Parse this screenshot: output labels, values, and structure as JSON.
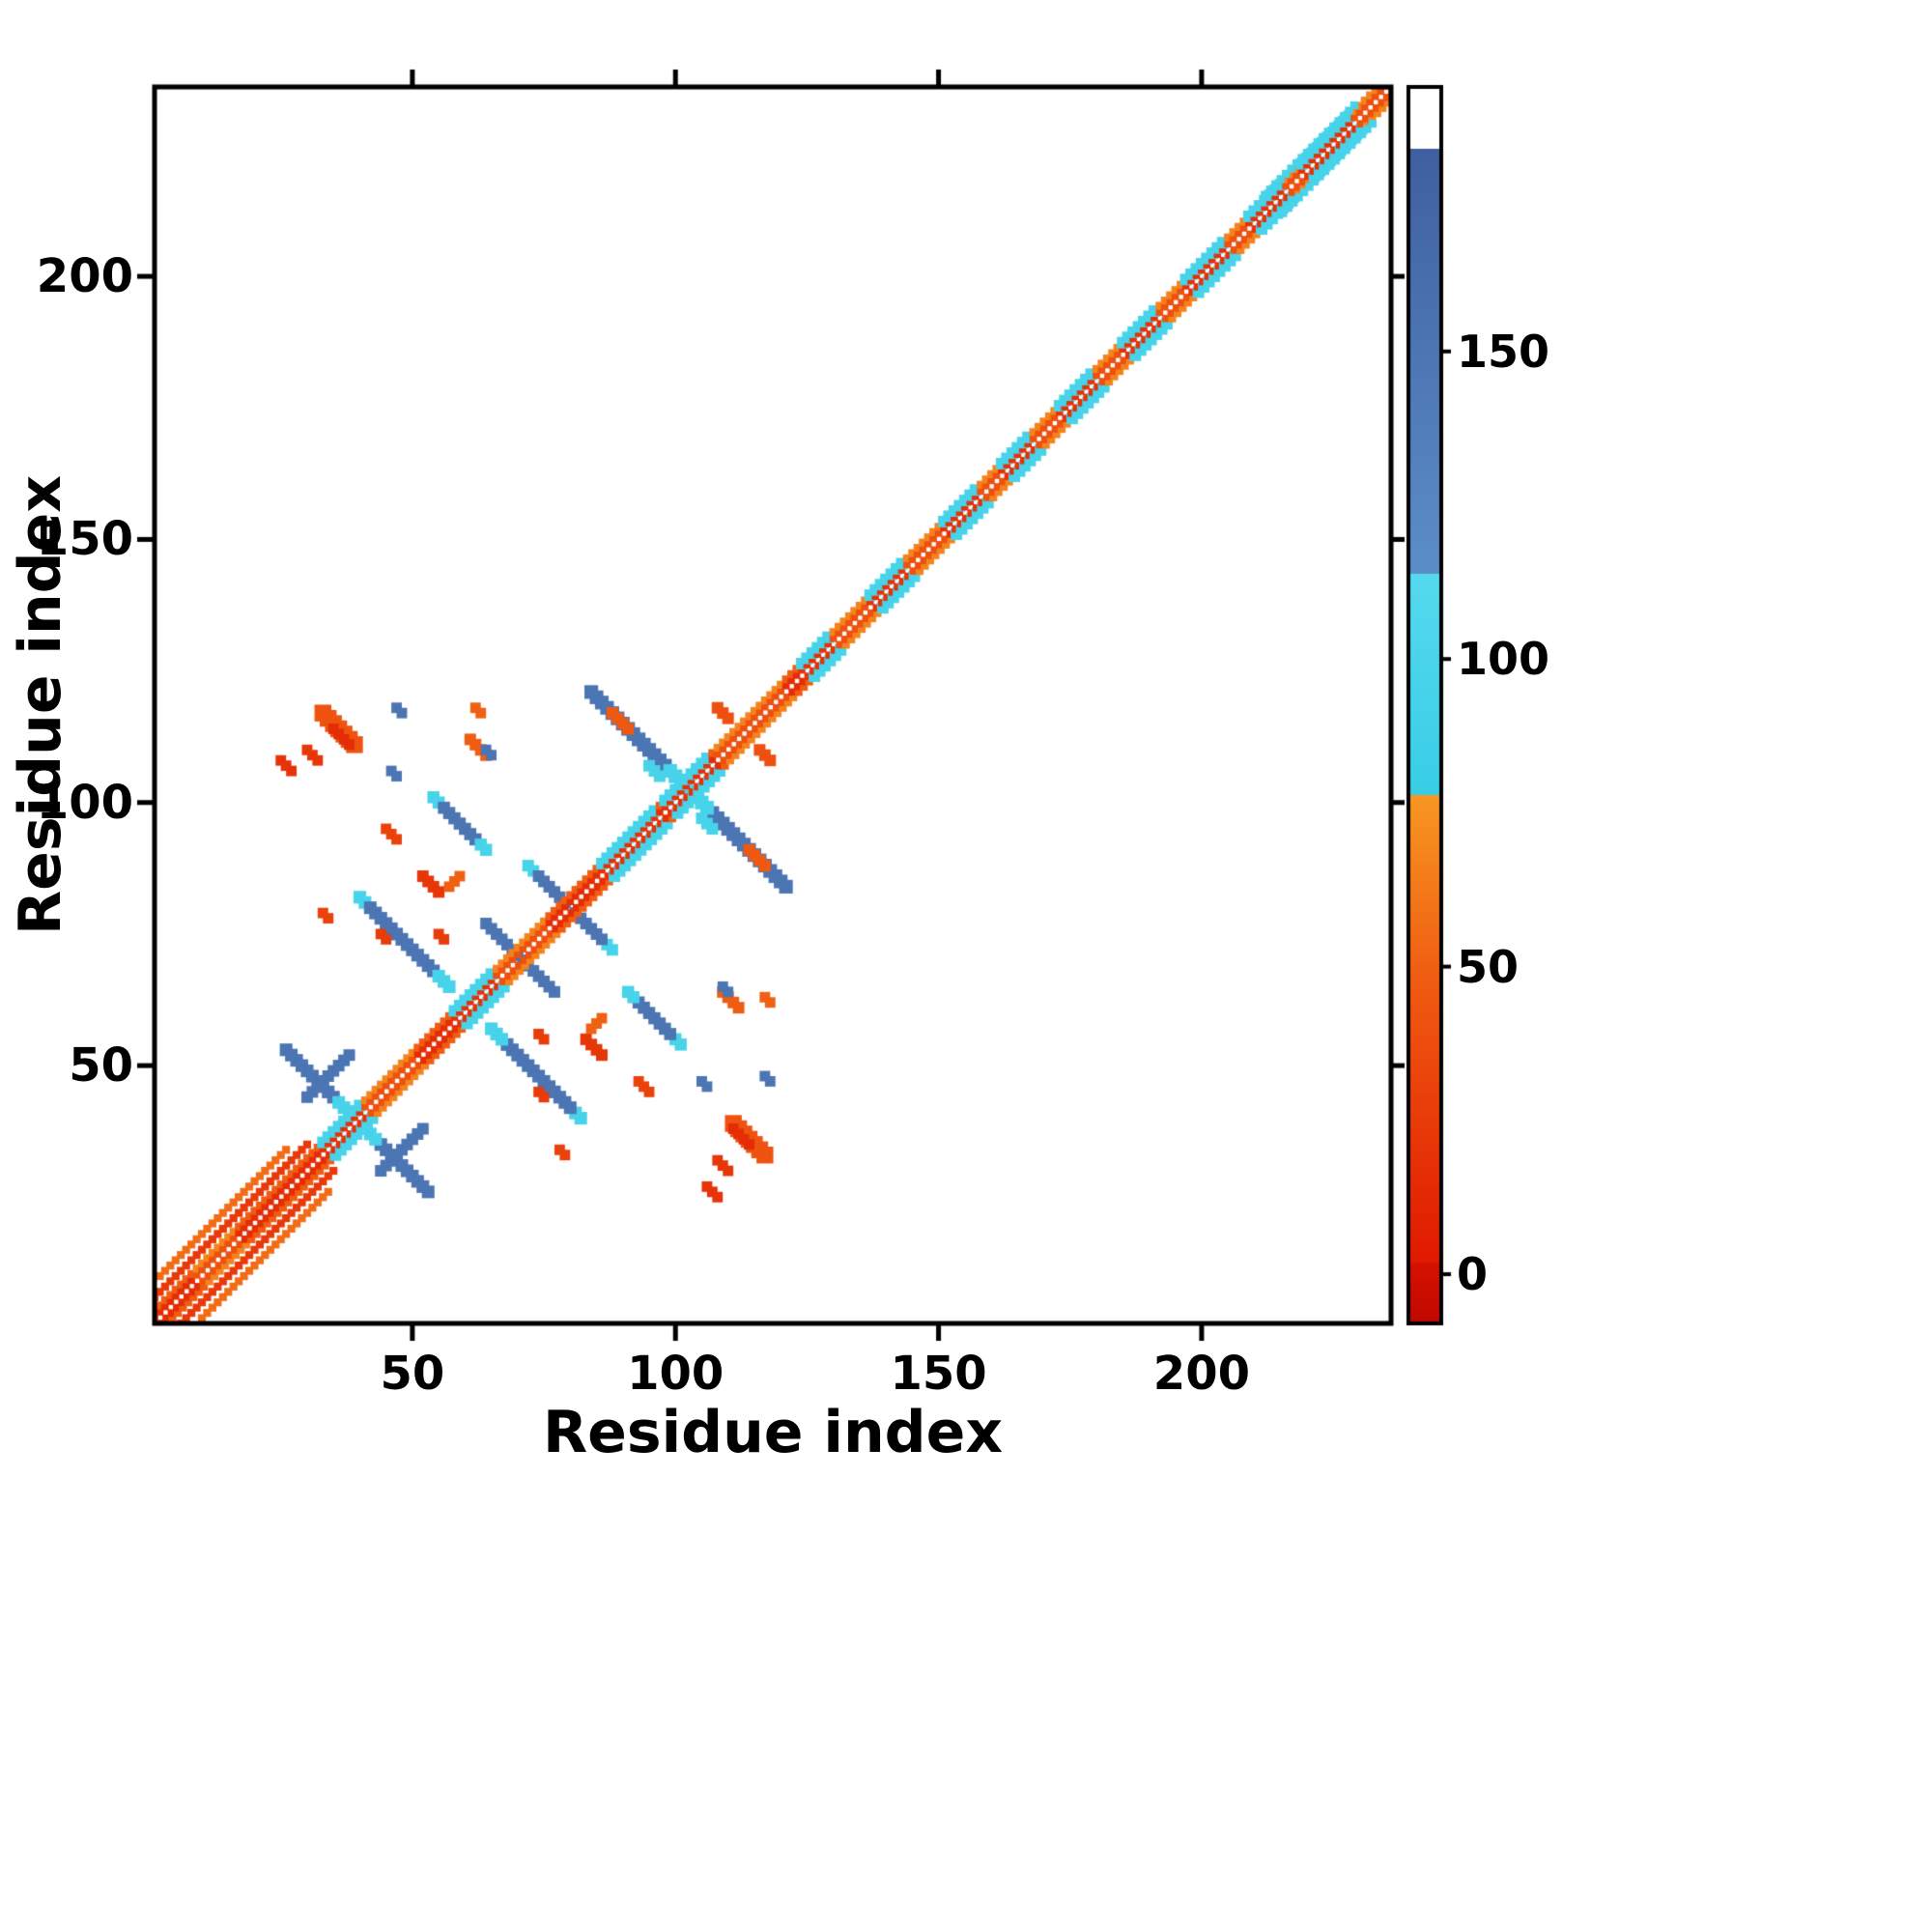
{
  "chart_data": {
    "type": "heatmap",
    "title": "",
    "xlabel": "Residue index",
    "ylabel": "Residue index",
    "x_range": [
      1,
      236
    ],
    "y_range": [
      1,
      236
    ],
    "x_ticks": [
      50,
      100,
      150,
      200
    ],
    "y_ticks": [
      50,
      100,
      150,
      200
    ],
    "grid": false,
    "background": "#ffffff",
    "frame_color": "#000000",
    "colorbar": {
      "position": "right",
      "ticks": [
        0,
        50,
        100,
        150
      ],
      "range": [
        -8,
        193
      ],
      "segments": [
        {
          "from": -8,
          "to": 2,
          "c0": "#c00800",
          "c1": "#d51200"
        },
        {
          "from": 2,
          "to": 48,
          "c0": "#e01900",
          "c1": "#f05c12"
        },
        {
          "from": 48,
          "to": 78,
          "c0": "#f05c12",
          "c1": "#f79722"
        },
        {
          "from": 78,
          "to": 114,
          "c0": "#38cde6",
          "c1": "#55d9ee"
        },
        {
          "from": 114,
          "to": 183,
          "c0": "#5b8ec8",
          "c1": "#3f5fa0"
        },
        {
          "from": 183,
          "to": 193,
          "c0": "#ffffff",
          "c1": "#ffffff"
        }
      ]
    },
    "diagonal": {
      "from": 1,
      "to": 235,
      "inner_value": 16,
      "outer_value": 48,
      "orange_inner": 40,
      "orange_outer": 68,
      "cyan_inner": 18,
      "cyan_outer": 96,
      "cyan_ranges": [
        [
          33,
          40
        ],
        [
          58,
          65
        ],
        [
          86,
          96
        ],
        [
          98,
          106
        ],
        [
          124,
          129
        ],
        [
          137,
          143
        ],
        [
          151,
          157
        ],
        [
          162,
          167
        ],
        [
          173,
          179
        ],
        [
          185,
          191
        ],
        [
          197,
          204
        ],
        [
          209,
          215
        ],
        [
          219,
          228
        ]
      ],
      "orange_ranges": [
        [
          9,
          16
        ],
        [
          41,
          50
        ],
        [
          66,
          75
        ],
        [
          108,
          120
        ],
        [
          130,
          136
        ],
        [
          144,
          150
        ],
        [
          158,
          161
        ],
        [
          168,
          172
        ],
        [
          180,
          184
        ],
        [
          192,
          196
        ],
        [
          205,
          208
        ],
        [
          216,
          218
        ],
        [
          229,
          234
        ]
      ],
      "helix_lines": [
        {
          "offset": 5,
          "from": 1,
          "to": 30,
          "value": 24
        },
        {
          "offset": 8,
          "from": 2,
          "to": 26,
          "value": 56
        },
        {
          "offset": 3.5,
          "from": 212,
          "to": 229,
          "value": 96
        }
      ]
    },
    "streaks": [
      {
        "x": 84,
        "y": 121,
        "len": 18,
        "dir": "anti",
        "value": 150,
        "tip_value": 96,
        "tip_cells": 4,
        "thick": 2.6
      },
      {
        "x": 54,
        "y": 101,
        "len": 10,
        "dir": "anti",
        "value": 150,
        "head_value": 96,
        "head_cells": 2,
        "tip_value": 96,
        "tip_cells": 2,
        "thick": 2.3
      },
      {
        "x": 40,
        "y": 82,
        "len": 17,
        "dir": "anti",
        "value": 150,
        "head_value": 96,
        "head_cells": 2,
        "tip_value": 96,
        "tip_cells": 3,
        "thick": 2.4
      },
      {
        "x": 64,
        "y": 77,
        "len": 6,
        "dir": "anti",
        "value": 150,
        "thick": 2.2
      },
      {
        "x": 26,
        "y": 53,
        "len": 12,
        "dir": "anti",
        "value": 150,
        "tip_value": 96,
        "tip_cells": 3,
        "thick": 2.4
      },
      {
        "x": 72,
        "y": 88,
        "len": 7,
        "dir": "anti",
        "value": 150,
        "head_value": 96,
        "head_cells": 2,
        "thick": 2.2
      },
      {
        "x": 30,
        "y": 44,
        "len": 8,
        "dir": "para",
        "value": 150,
        "thick": 2.2
      }
    ],
    "blobs": [
      {
        "x": 33,
        "y": 117,
        "len": 6,
        "dir": "anti",
        "value": 42,
        "thick": 3.2
      },
      {
        "x": 35,
        "y": 114,
        "len": 3,
        "dir": "anti",
        "value": 16,
        "thick": 2.0
      },
      {
        "x": 30,
        "y": 110,
        "len": 2,
        "dir": "anti",
        "value": 22,
        "thick": 2.0
      },
      {
        "x": 61,
        "y": 112,
        "len": 3,
        "dir": "anti",
        "value": 48,
        "thick": 2.2
      },
      {
        "x": 52,
        "y": 86,
        "len": 3,
        "dir": "anti",
        "value": 22,
        "thick": 2.2
      },
      {
        "x": 57,
        "y": 84,
        "len": 2,
        "dir": "para",
        "value": 50,
        "thick": 2.0
      },
      {
        "x": 88,
        "y": 117,
        "len": 3,
        "dir": "anti",
        "value": 46,
        "thick": 2.2
      },
      {
        "x": 44,
        "y": 75,
        "len": 1,
        "dir": "anti",
        "value": 26,
        "thick": 2.0
      },
      {
        "x": 33,
        "y": 79,
        "len": 1,
        "dir": "anti",
        "value": 30,
        "thick": 2.0
      },
      {
        "x": 55,
        "y": 75,
        "len": 1,
        "dir": "anti",
        "value": 26,
        "thick": 2.0
      },
      {
        "x": 45,
        "y": 95,
        "len": 2,
        "dir": "anti",
        "value": 30,
        "thick": 2.0
      },
      {
        "x": 25,
        "y": 108,
        "len": 2,
        "dir": "anti",
        "value": 20,
        "thick": 2.0
      },
      {
        "x": 62,
        "y": 118,
        "len": 1,
        "dir": "anti",
        "value": 50,
        "thick": 2.0
      },
      {
        "x": 64,
        "y": 110,
        "len": 1,
        "dir": "anti",
        "value": 150,
        "thick": 2.0
      },
      {
        "x": 46,
        "y": 106,
        "len": 1,
        "dir": "anti",
        "value": 150,
        "thick": 2.0
      },
      {
        "x": 47,
        "y": 118,
        "len": 1,
        "dir": "anti",
        "value": 150,
        "thick": 2.0
      },
      {
        "x": 95,
        "y": 107,
        "len": 2,
        "dir": "anti",
        "value": 96,
        "thick": 2.2
      },
      {
        "x": 108,
        "y": 118,
        "len": 2,
        "dir": "anti",
        "value": 40,
        "thick": 2.2
      }
    ]
  }
}
